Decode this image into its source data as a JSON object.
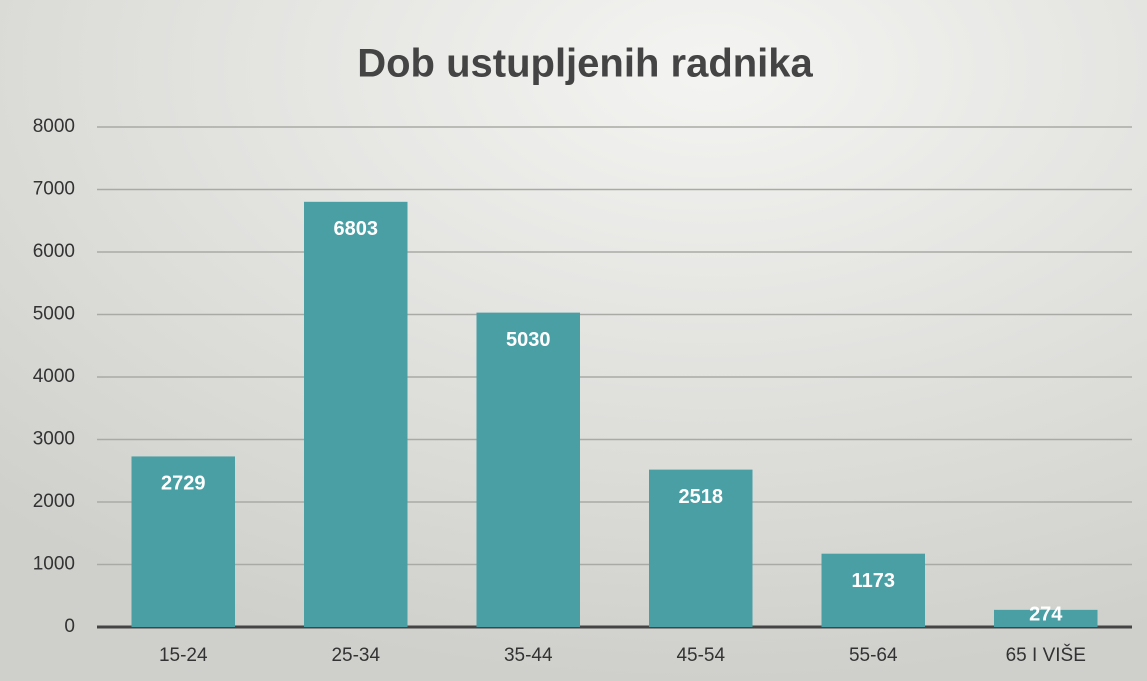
{
  "chart_data": {
    "type": "bar",
    "title": "Dob ustupljenih radnika",
    "categories": [
      "15-24",
      "25-34",
      "35-44",
      "45-54",
      "55-64",
      "65 I VIŠE"
    ],
    "values": [
      2729,
      6803,
      5030,
      2518,
      1173,
      274
    ],
    "color": "#4a9fa5",
    "ylim": [
      0,
      8000
    ],
    "yticks": [
      0,
      1000,
      2000,
      3000,
      4000,
      5000,
      6000,
      7000,
      8000
    ],
    "grid": true
  }
}
